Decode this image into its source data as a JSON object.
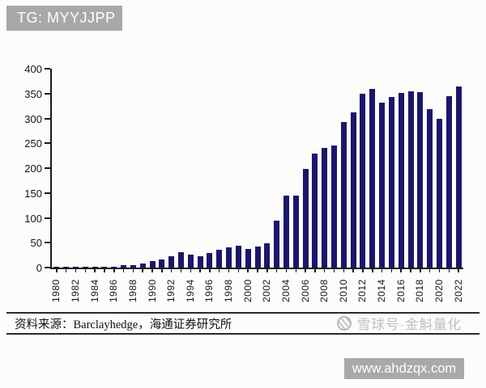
{
  "header": {
    "tag_label": "TG: MYYJJPP"
  },
  "chart_data": {
    "type": "bar",
    "x": [
      1980,
      1981,
      1982,
      1983,
      1984,
      1985,
      1986,
      1987,
      1988,
      1989,
      1990,
      1991,
      1992,
      1993,
      1994,
      1995,
      1996,
      1997,
      1998,
      1999,
      2000,
      2001,
      2002,
      2003,
      2004,
      2005,
      2006,
      2007,
      2008,
      2009,
      2010,
      2011,
      2012,
      2013,
      2014,
      2015,
      2016,
      2017,
      2018,
      2019,
      2020,
      2021,
      2022
    ],
    "values": [
      1,
      1,
      1,
      1,
      1,
      1,
      2,
      5,
      5,
      8,
      13,
      16,
      23,
      31,
      26,
      23,
      30,
      35,
      40,
      44,
      37,
      42,
      49,
      95,
      145,
      144,
      198,
      229,
      241,
      246,
      292,
      313,
      349,
      360,
      332,
      343,
      351,
      354,
      353,
      319,
      299,
      345,
      365
    ],
    "title": "",
    "xlabel": "",
    "ylabel": "",
    "ylim": [
      0,
      400
    ],
    "yticks": [
      0,
      50,
      100,
      150,
      200,
      250,
      300,
      350,
      400
    ],
    "xtick_label_step": 2,
    "grid": false,
    "legend": false,
    "bar_color": "#1a176b"
  },
  "footer": {
    "source_note": "资料来源：Barclayhedge，海通证券研究所",
    "watermark_social": "雪球号·金斛量化",
    "watermark_site": "www.ahdzqx.com"
  },
  "colors": {
    "bar": "#1a176b",
    "header_banner": "#a8a8a8",
    "site_banner": "#a9a9a9",
    "watermark_text": "#bfbebb",
    "axis": "#1a1a1a"
  }
}
